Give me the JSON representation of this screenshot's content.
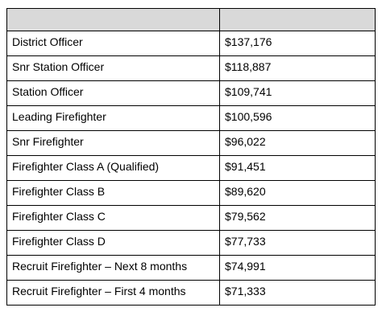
{
  "table": {
    "header": [
      "",
      ""
    ],
    "rows": [
      {
        "rank": "District Officer",
        "salary": "$137,176"
      },
      {
        "rank": "Snr Station Officer",
        "salary": "$118,887"
      },
      {
        "rank": "Station Officer",
        "salary": "$109,741"
      },
      {
        "rank": "Leading Firefighter",
        "salary": "$100,596"
      },
      {
        "rank": "Snr Firefighter",
        "salary": "$96,022"
      },
      {
        "rank": "Firefighter Class A (Qualified)",
        "salary": "$91,451"
      },
      {
        "rank": "Firefighter Class B",
        "salary": "$89,620"
      },
      {
        "rank": "Firefighter Class C",
        "salary": "$79,562"
      },
      {
        "rank": "Firefighter Class D",
        "salary": "$77,733"
      },
      {
        "rank": "Recruit Firefighter – Next 8 months",
        "salary": "$74,991"
      },
      {
        "rank": "Recruit Firefighter – First 4 months",
        "salary": "$71,333"
      }
    ]
  },
  "colors": {
    "header_bg": "#d9d9d9",
    "border": "#000000",
    "text": "#000000"
  }
}
